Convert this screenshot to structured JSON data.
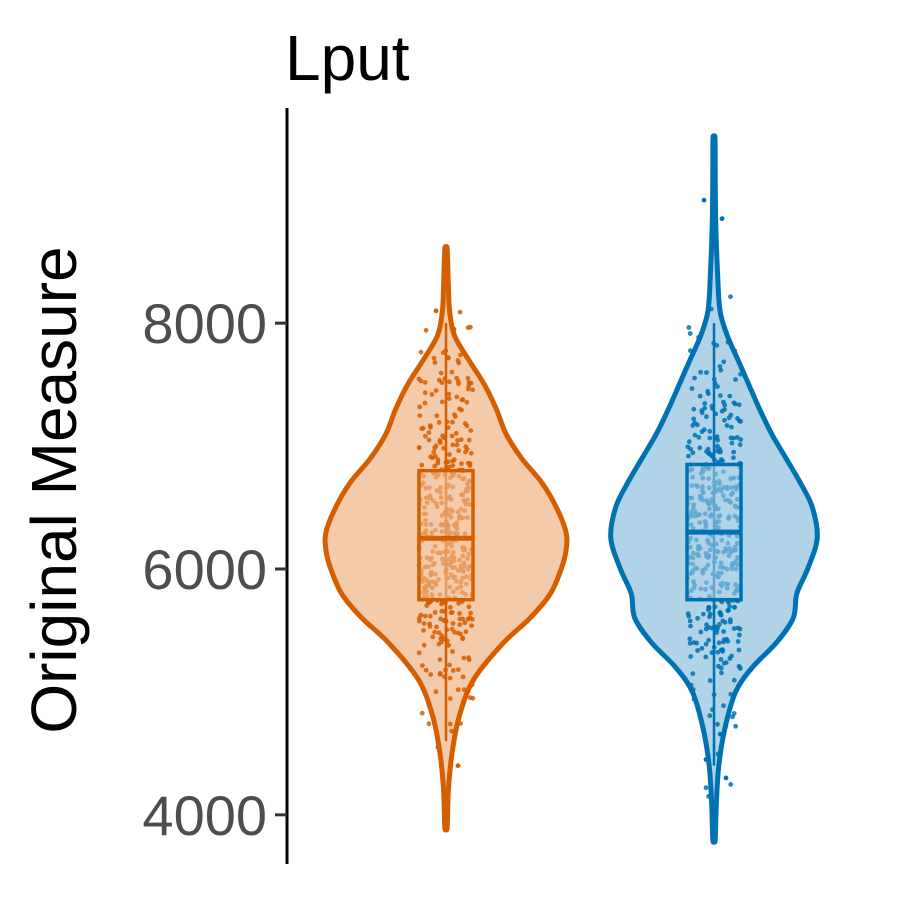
{
  "chart_data": {
    "type": "violin",
    "title": "Lput",
    "xlabel": "",
    "ylabel": "Original Measure",
    "ylim": [
      3600,
      9750
    ],
    "yticks": [
      4000,
      6000,
      8000
    ],
    "ytick_labels": [
      "4000",
      "6000",
      "8000"
    ],
    "grid": false,
    "legend": "none",
    "groups": [
      {
        "color": "#D55E00",
        "fill": "#F3CBAA",
        "min": 3900,
        "max": 8600,
        "whisker_low": 4600,
        "whisker_high": 8000,
        "q1": 5750,
        "median": 6250,
        "q3": 6800,
        "density": [
          [
            3900,
            0.01
          ],
          [
            4200,
            0.02
          ],
          [
            4500,
            0.05
          ],
          [
            4800,
            0.11
          ],
          [
            5100,
            0.23
          ],
          [
            5400,
            0.48
          ],
          [
            5600,
            0.7
          ],
          [
            5800,
            0.87
          ],
          [
            6000,
            0.96
          ],
          [
            6150,
            1.0
          ],
          [
            6300,
            1.0
          ],
          [
            6500,
            0.92
          ],
          [
            6700,
            0.8
          ],
          [
            6900,
            0.63
          ],
          [
            7100,
            0.5
          ],
          [
            7300,
            0.42
          ],
          [
            7500,
            0.32
          ],
          [
            7700,
            0.19
          ],
          [
            7900,
            0.07
          ],
          [
            8100,
            0.03
          ],
          [
            8300,
            0.02
          ],
          [
            8600,
            0.01
          ]
        ]
      },
      {
        "color": "#0072B2",
        "fill": "#B0D3E8",
        "min": 3800,
        "max": 9500,
        "whisker_low": 4400,
        "whisker_high": 8000,
        "q1": 5750,
        "median": 6300,
        "q3": 6850,
        "density": [
          [
            3800,
            0.01
          ],
          [
            4100,
            0.02
          ],
          [
            4400,
            0.04
          ],
          [
            4700,
            0.09
          ],
          [
            5000,
            0.18
          ],
          [
            5200,
            0.32
          ],
          [
            5400,
            0.52
          ],
          [
            5600,
            0.66
          ],
          [
            5800,
            0.69
          ],
          [
            6000,
            0.78
          ],
          [
            6250,
            0.86
          ],
          [
            6500,
            0.82
          ],
          [
            6700,
            0.72
          ],
          [
            6900,
            0.6
          ],
          [
            7100,
            0.48
          ],
          [
            7300,
            0.38
          ],
          [
            7500,
            0.29
          ],
          [
            7700,
            0.2
          ],
          [
            7900,
            0.11
          ],
          [
            8100,
            0.05
          ],
          [
            8400,
            0.03
          ],
          [
            8800,
            0.015
          ],
          [
            9200,
            0.01
          ],
          [
            9500,
            0.008
          ]
        ]
      }
    ]
  }
}
